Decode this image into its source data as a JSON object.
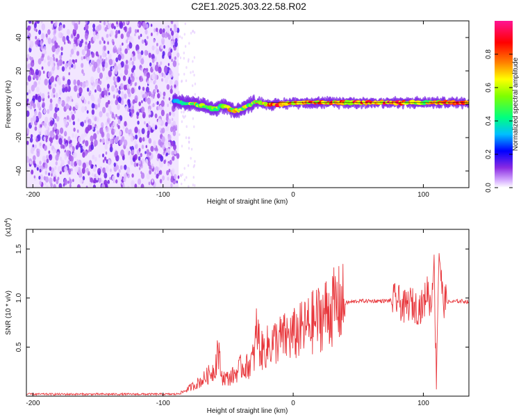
{
  "title": "C2E1.2025.303.22.58.R02",
  "chart_data": [
    {
      "type": "heatmap",
      "xlabel": "Height of straight line (km)",
      "ylabel": "Frequency (Hz)",
      "xlim": [
        -205,
        135
      ],
      "ylim": [
        -50,
        50
      ],
      "xticks": [
        -200,
        -100,
        0,
        100
      ],
      "yticks": [
        -40,
        -20,
        0,
        20,
        40
      ],
      "colorbar": {
        "label": "Normalized spectral amplitude",
        "range": [
          0,
          1
        ],
        "ticks": [
          "0.0",
          "0.2",
          "0.4",
          "0.6",
          "0.8"
        ],
        "colors": [
          "#ffffff",
          "#d9b3ff",
          "#8a2be2",
          "#0000ff",
          "#00bfff",
          "#00ff80",
          "#80ff00",
          "#ffff00",
          "#ff8000",
          "#ff0000",
          "#ff1493"
        ]
      },
      "noise_region_x": [
        -205,
        -88
      ],
      "trace": {
        "x": [
          -92,
          -85,
          -80,
          -75,
          -70,
          -65,
          -60,
          -55,
          -50,
          -45,
          -40,
          -35,
          -30,
          -25,
          -20,
          -10,
          0,
          10,
          20,
          40,
          60,
          80,
          100,
          110,
          120,
          135
        ],
        "freq": [
          2,
          1,
          0.5,
          0,
          -1,
          -2,
          -3,
          -1,
          -2,
          -4,
          -3,
          -1,
          1,
          1,
          0,
          0,
          1,
          1,
          1,
          1,
          1,
          1,
          1,
          1,
          1,
          1
        ],
        "amplitude": [
          0.3,
          0.5,
          0.6,
          0.7,
          0.6,
          0.55,
          0.6,
          0.65,
          0.7,
          0.75,
          0.6,
          0.65,
          0.7,
          0.75,
          0.8,
          0.95,
          0.8,
          0.85,
          0.8,
          0.85,
          0.9,
          0.9,
          0.6,
          0.8,
          0.9,
          0.9
        ]
      }
    },
    {
      "type": "line",
      "xlabel": "Height of straight line (km)",
      "ylabel": "SNR (10 * v/v)",
      "y_multiplier": "(x10",
      "y_multiplier_exp": "4",
      "y_multiplier_close": ")",
      "xlim": [
        -205,
        135
      ],
      "ylim": [
        0,
        1.7
      ],
      "xticks": [
        -200,
        -100,
        0,
        100
      ],
      "yticks": [
        "0.5",
        "1.0",
        "1.5"
      ],
      "line_color": "#e8383d",
      "series": [
        {
          "x": [
            -205,
            -90,
            -85,
            -80,
            -75,
            -70,
            -65,
            -60,
            -58,
            -55,
            -50,
            -45,
            -40,
            -35,
            -30,
            -28,
            -25,
            -20,
            -15,
            -10,
            -5,
            0,
            5,
            10,
            15,
            20,
            25,
            30,
            40,
            50,
            60,
            70,
            80,
            85,
            90,
            95,
            100,
            103,
            106,
            108,
            110,
            112,
            115,
            120,
            130,
            135
          ],
          "y": [
            0.02,
            0.02,
            0.04,
            0.08,
            0.12,
            0.16,
            0.22,
            0.28,
            0.5,
            0.2,
            0.18,
            0.22,
            0.3,
            0.3,
            0.4,
            0.7,
            0.45,
            0.5,
            0.55,
            0.58,
            0.6,
            0.62,
            0.66,
            0.7,
            0.75,
            0.8,
            0.85,
            0.9,
            0.95,
            0.97,
            0.97,
            0.97,
            0.98,
            0.9,
            0.95,
            0.9,
            0.92,
            1.1,
            0.9,
            1.45,
            0.2,
            1.5,
            0.97,
            0.96,
            0.97,
            0.96
          ]
        }
      ]
    }
  ]
}
